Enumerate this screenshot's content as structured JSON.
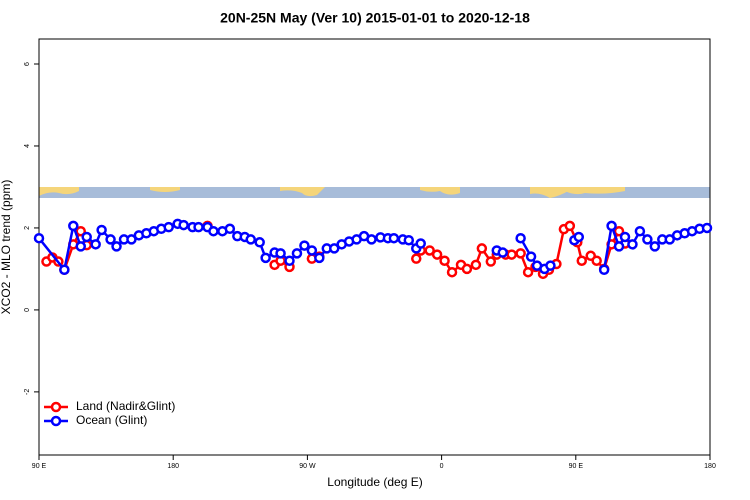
{
  "chart_data": {
    "type": "line",
    "title": "20N-25N May (Ver 10)   2015-01-01 to 2020-12-18",
    "x_label": "Longitude (deg E)",
    "y_label": "XCO2 - MLO trend (ppm)",
    "xlim": [
      90,
      540
    ],
    "xticks": [
      {
        "value": 90,
        "label": "90 E"
      },
      {
        "value": 180,
        "label": "180"
      },
      {
        "value": 270,
        "label": "90 W"
      },
      {
        "value": 360,
        "label": "0"
      },
      {
        "value": 450,
        "label": "90 E"
      },
      {
        "value": 540,
        "label": "180"
      }
    ],
    "ylim": [
      -3.54,
      6.61
    ],
    "yticks": [
      -2,
      0,
      2,
      4,
      6
    ],
    "legend": "bottom-left",
    "series": [
      {
        "name": "Land (Nadir&Glint)",
        "color": "#ff0000",
        "x": [
          95,
          99,
          103,
          107,
          113,
          118,
          122,
          null,
          203,
          null,
          248,
          252,
          258,
          null,
          273,
          278,
          null,
          343,
          346,
          352,
          357,
          362,
          367,
          373,
          377,
          383,
          387,
          393,
          397,
          403,
          407,
          413,
          418,
          423,
          428,
          432,
          437,
          442,
          446,
          451,
          454,
          460,
          464,
          469,
          474,
          479,
          483
        ],
        "values": [
          1.18,
          1.28,
          1.18,
          0.98,
          1.6,
          1.92,
          1.58,
          null,
          2.05,
          null,
          1.1,
          1.2,
          1.05,
          null,
          1.25,
          1.3,
          null,
          1.25,
          1.45,
          1.45,
          1.35,
          1.2,
          0.92,
          1.1,
          1.0,
          1.1,
          1.5,
          1.18,
          1.35,
          1.35,
          1.35,
          1.38,
          0.92,
          1.05,
          0.88,
          0.98,
          1.12,
          1.97,
          2.05,
          1.65,
          1.2,
          1.32,
          1.2,
          1.0,
          1.6,
          1.92,
          1.62
        ]
      },
      {
        "name": "Ocean (Glint)",
        "color": "#0000ff",
        "x": [
          90,
          107,
          113,
          118,
          122,
          128,
          132,
          138,
          142,
          147,
          152,
          157,
          162,
          167,
          172,
          177,
          183,
          187,
          193,
          197,
          203,
          207,
          213,
          218,
          223,
          228,
          232,
          238,
          242,
          248,
          252,
          258,
          263,
          268,
          273,
          278,
          283,
          288,
          293,
          298,
          303,
          308,
          313,
          319,
          324,
          328,
          334,
          338,
          343,
          346,
          null,
          397,
          401,
          null,
          413,
          420,
          424,
          429,
          433,
          null,
          449,
          452,
          null,
          469,
          474,
          479,
          483,
          488,
          493,
          498,
          503,
          508,
          513,
          518,
          523,
          528,
          533,
          538
        ],
        "values": [
          1.75,
          0.98,
          2.05,
          1.55,
          1.78,
          1.6,
          1.95,
          1.72,
          1.55,
          1.72,
          1.72,
          1.82,
          1.87,
          1.92,
          1.98,
          2.02,
          2.1,
          2.07,
          2.02,
          2.02,
          2.02,
          1.92,
          1.92,
          1.98,
          1.8,
          1.78,
          1.72,
          1.65,
          1.27,
          1.4,
          1.38,
          1.2,
          1.38,
          1.57,
          1.45,
          1.27,
          1.5,
          1.5,
          1.6,
          1.67,
          1.72,
          1.8,
          1.72,
          1.77,
          1.75,
          1.75,
          1.72,
          1.7,
          1.5,
          1.62,
          null,
          1.45,
          1.4,
          null,
          1.75,
          1.3,
          1.08,
          1.0,
          1.08,
          null,
          1.7,
          1.78,
          null,
          0.98,
          2.05,
          1.55,
          1.78,
          1.6,
          1.92,
          1.72,
          1.55,
          1.72,
          1.72,
          1.82,
          1.87,
          1.92,
          1.98,
          2.0
        ]
      }
    ]
  }
}
